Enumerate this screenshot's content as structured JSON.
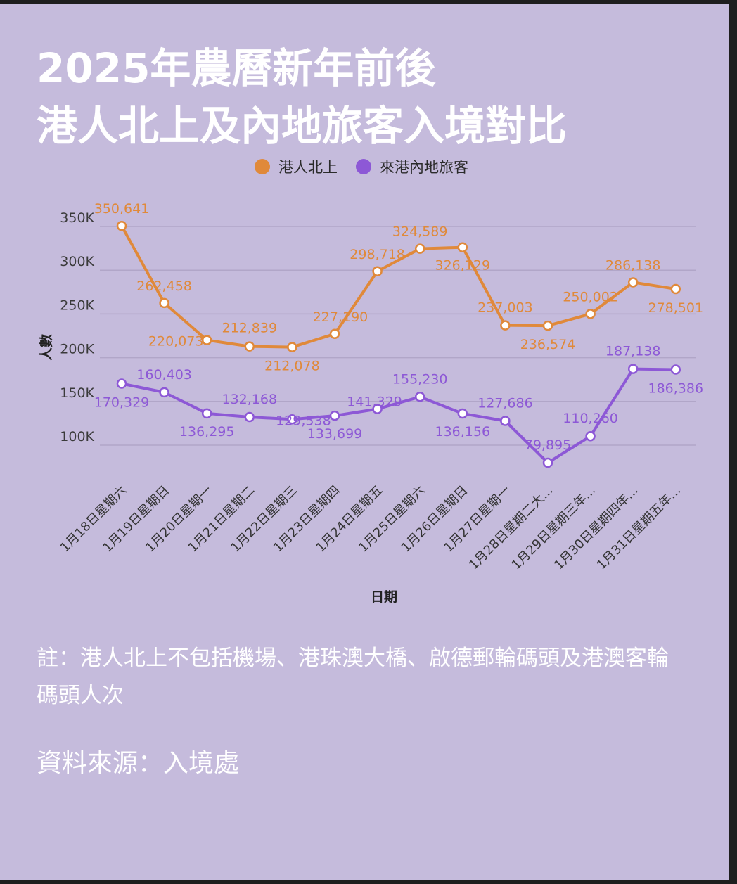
{
  "title_line1": "2025年農曆新年前後",
  "title_line2": "港人北上及內地旅客入境對比",
  "note": "註：港人北上不包括機場、港珠澳大橋、啟德郵輪碼頭及港澳客輪碼頭人次",
  "source": "資料來源：入境處",
  "colors": {
    "background": "#c5bbdc",
    "series1": "#e0893a",
    "series2": "#8d58d6",
    "grid": "#b1a6c8",
    "text": "#ffffff"
  },
  "chart_data": {
    "type": "line",
    "xlabel": "日期",
    "ylabel": "人數",
    "ylim": [
      50000,
      350000
    ],
    "yticks": [
      {
        "value": 100000,
        "label": "100K"
      },
      {
        "value": 150000,
        "label": "150K"
      },
      {
        "value": 200000,
        "label": "200K"
      },
      {
        "value": 250000,
        "label": "250K"
      },
      {
        "value": 300000,
        "label": "300K"
      },
      {
        "value": 350000,
        "label": "350K"
      }
    ],
    "grid": true,
    "legend_position": "top",
    "categories": [
      "1月18日星期六",
      "1月19日星期日",
      "1月20日星期一",
      "1月21日星期二",
      "1月22日星期三",
      "1月23日星期四",
      "1月24日星期五",
      "1月25日星期六",
      "1月26日星期日",
      "1月27日星期一",
      "1月28日星期二大...",
      "1月29日星期三年...",
      "1月30日星期四年...",
      "1月31日星期五年..."
    ],
    "series": [
      {
        "name": "港人北上",
        "color": "#e0893a",
        "values": [
          350641,
          262458,
          220073,
          212839,
          212078,
          227190,
          298718,
          324589,
          326129,
          237003,
          236574,
          250002,
          286138,
          278501
        ],
        "labels": [
          "350,641",
          "262,458",
          "220,073",
          "212,839",
          "212,078",
          "227,190",
          "298,718",
          "324,589",
          "326,129",
          "237,003",
          "236,574",
          "250,002",
          "286,138",
          "278,501"
        ]
      },
      {
        "name": "來港內地旅客",
        "color": "#8d58d6",
        "values": [
          170329,
          160403,
          136295,
          132168,
          129538,
          133699,
          141329,
          155230,
          136156,
          127686,
          79895,
          110260,
          187138,
          186386
        ],
        "labels": [
          "170,329",
          "160,403",
          "136,295",
          "132,168",
          "129,538",
          "133,699",
          "141,329",
          "155,230",
          "136,156",
          "127,686",
          "79,895",
          "110,260",
          "187,138",
          "186,386"
        ]
      }
    ]
  }
}
